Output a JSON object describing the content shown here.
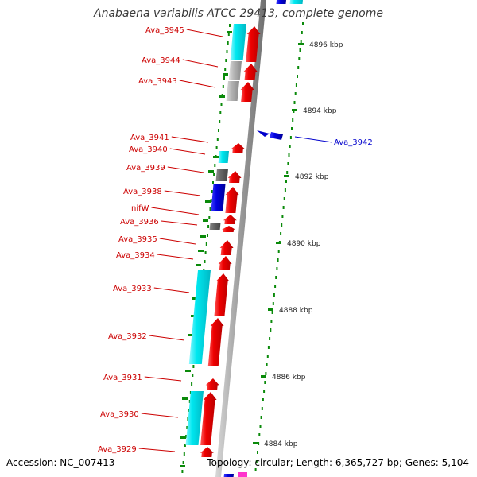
{
  "header": {
    "title": "Anabaena variabilis ATCC 29413, complete genome"
  },
  "footer": {
    "accession": "Accession: NC_007413",
    "summary": "Topology: circular; Length: 6,365,727 bp; Genes: 5,104"
  },
  "colors": {
    "label_red": "#cc0000",
    "label_blue": "#0000cc",
    "tick_green": "#0a8a0a",
    "gene_red": "#ee0000",
    "gene_cyan": "#00e5ee",
    "gene_grey": "#aaaaaa",
    "gene_darkgrey": "#666666",
    "gene_blue": "#0000dd",
    "backbone": "#999999"
  },
  "chart_data": {
    "type": "genome-map",
    "scale_unit": "kbp",
    "scale_ticks": [
      "4896 kbp",
      "4894 kbp",
      "4892 kbp",
      "4890 kbp",
      "4888 kbp",
      "4886 kbp",
      "4884 kbp"
    ],
    "genes": [
      {
        "label": "Ava_3945",
        "strand": "reverse"
      },
      {
        "label": "Ava_3944",
        "strand": "reverse"
      },
      {
        "label": "Ava_3943",
        "strand": "reverse"
      },
      {
        "label": "Ava_3942",
        "strand": "forward"
      },
      {
        "label": "Ava_3941",
        "strand": "reverse"
      },
      {
        "label": "Ava_3940",
        "strand": "reverse"
      },
      {
        "label": "Ava_3939",
        "strand": "reverse"
      },
      {
        "label": "Ava_3938",
        "strand": "reverse"
      },
      {
        "label": "nifW",
        "strand": "reverse"
      },
      {
        "label": "Ava_3936",
        "strand": "reverse"
      },
      {
        "label": "Ava_3935",
        "strand": "reverse"
      },
      {
        "label": "Ava_3934",
        "strand": "reverse"
      },
      {
        "label": "Ava_3933",
        "strand": "reverse"
      },
      {
        "label": "Ava_3932",
        "strand": "reverse"
      },
      {
        "label": "Ava_3931",
        "strand": "reverse"
      },
      {
        "label": "Ava_3930",
        "strand": "reverse"
      },
      {
        "label": "Ava_3929",
        "strand": "reverse"
      }
    ]
  }
}
